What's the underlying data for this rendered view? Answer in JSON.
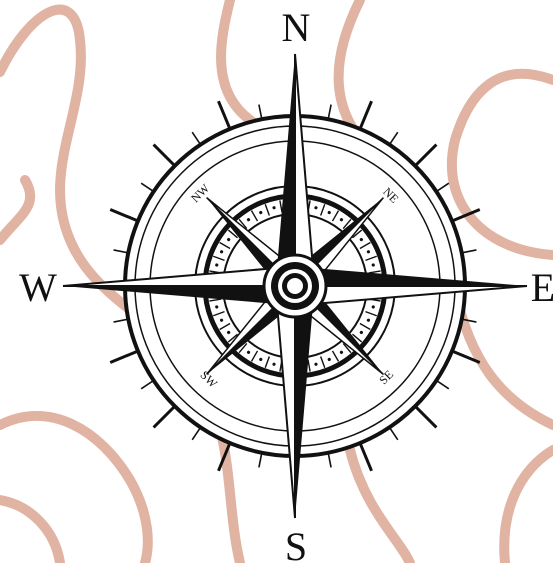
{
  "cardinals": {
    "north": "N",
    "south": "S",
    "east": "E",
    "west": "W"
  },
  "intercardinals": {
    "northeast": "NE",
    "northwest": "NW",
    "southeast": "SE",
    "southwest": "SW"
  },
  "colors": {
    "background": "#ffffff",
    "contour": "#e0b3a3",
    "ink": "#111111"
  },
  "icons": {
    "rose": "compass-rose-icon",
    "background": "topographic-contour-lines"
  }
}
